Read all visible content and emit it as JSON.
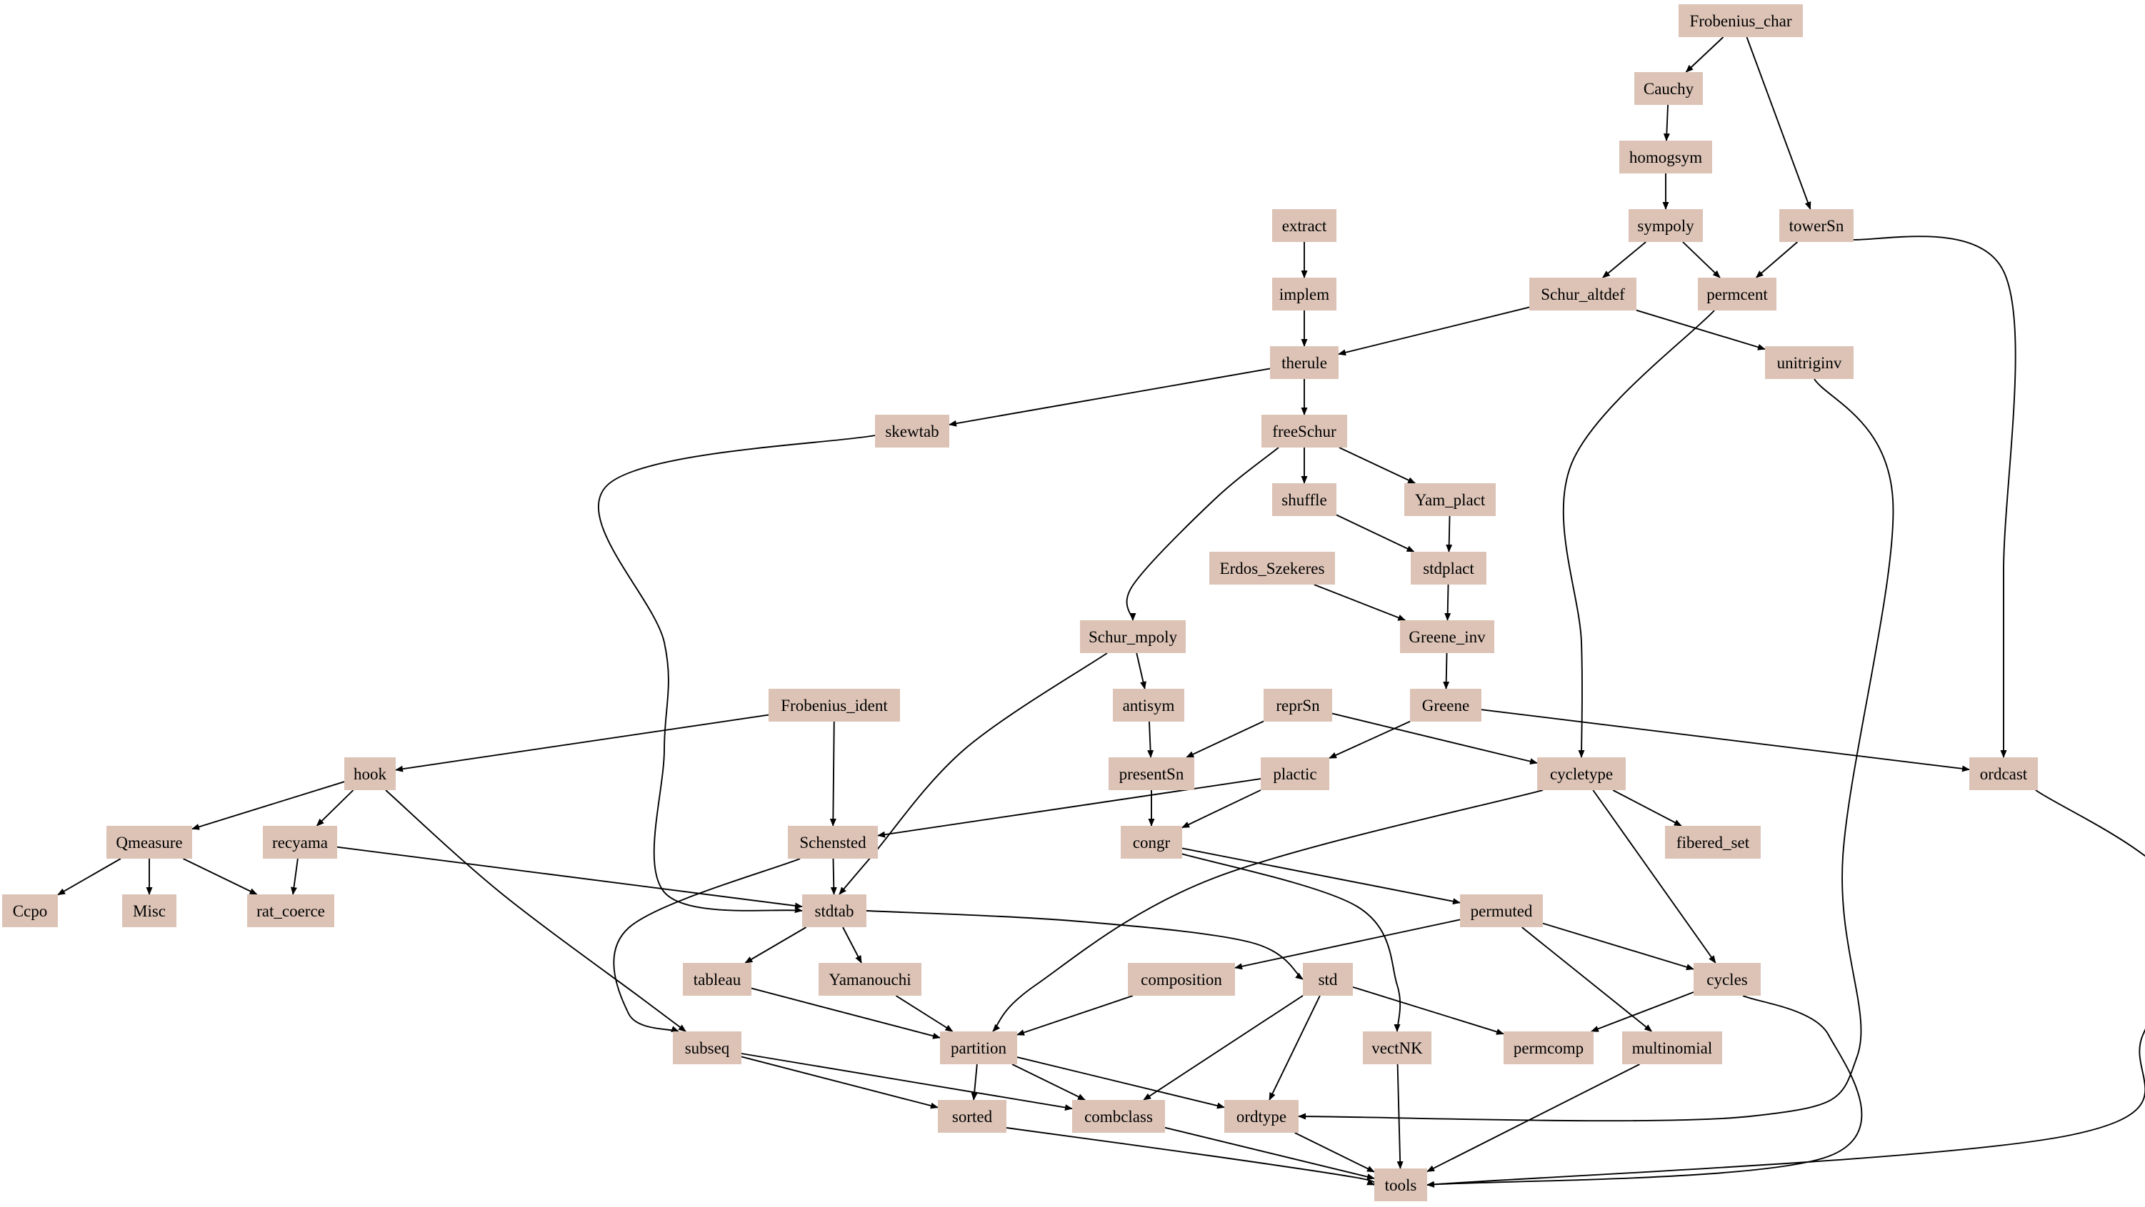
{
  "colors": {
    "node_fill": "#dcc3b6",
    "edge": "#000000",
    "text": "#000000",
    "background": "#ffffff"
  },
  "nodes": [
    {
      "id": "Frobenius_char",
      "label": "Frobenius_char"
    },
    {
      "id": "Cauchy",
      "label": "Cauchy"
    },
    {
      "id": "homogsym",
      "label": "homogsym"
    },
    {
      "id": "sympoly",
      "label": "sympoly"
    },
    {
      "id": "towerSn",
      "label": "towerSn"
    },
    {
      "id": "extract",
      "label": "extract"
    },
    {
      "id": "implem",
      "label": "implem"
    },
    {
      "id": "Schur_altdef",
      "label": "Schur_altdef"
    },
    {
      "id": "permcent",
      "label": "permcent"
    },
    {
      "id": "therule",
      "label": "therule"
    },
    {
      "id": "unitriginv",
      "label": "unitriginv"
    },
    {
      "id": "skewtab",
      "label": "skewtab"
    },
    {
      "id": "freeSchur",
      "label": "freeSchur"
    },
    {
      "id": "shuffle",
      "label": "shuffle"
    },
    {
      "id": "Yam_plact",
      "label": "Yam_plact"
    },
    {
      "id": "Erdos_Szekeres",
      "label": "Erdos_Szekeres"
    },
    {
      "id": "stdplact",
      "label": "stdplact"
    },
    {
      "id": "Schur_mpoly",
      "label": "Schur_mpoly"
    },
    {
      "id": "Greene_inv",
      "label": "Greene_inv"
    },
    {
      "id": "Frobenius_ident",
      "label": "Frobenius_ident"
    },
    {
      "id": "antisym",
      "label": "antisym"
    },
    {
      "id": "reprSn",
      "label": "reprSn"
    },
    {
      "id": "Greene",
      "label": "Greene"
    },
    {
      "id": "hook",
      "label": "hook"
    },
    {
      "id": "presentSn",
      "label": "presentSn"
    },
    {
      "id": "plactic",
      "label": "plactic"
    },
    {
      "id": "cycletype",
      "label": "cycletype"
    },
    {
      "id": "ordcast",
      "label": "ordcast"
    },
    {
      "id": "Qmeasure",
      "label": "Qmeasure"
    },
    {
      "id": "recyama",
      "label": "recyama"
    },
    {
      "id": "Schensted",
      "label": "Schensted"
    },
    {
      "id": "congr",
      "label": "congr"
    },
    {
      "id": "fibered_set",
      "label": "fibered_set"
    },
    {
      "id": "Ccpo",
      "label": "Ccpo"
    },
    {
      "id": "Misc",
      "label": "Misc"
    },
    {
      "id": "rat_coerce",
      "label": "rat_coerce"
    },
    {
      "id": "stdtab",
      "label": "stdtab"
    },
    {
      "id": "permuted",
      "label": "permuted"
    },
    {
      "id": "tableau",
      "label": "tableau"
    },
    {
      "id": "Yamanouchi",
      "label": "Yamanouchi"
    },
    {
      "id": "composition",
      "label": "composition"
    },
    {
      "id": "std",
      "label": "std"
    },
    {
      "id": "cycles",
      "label": "cycles"
    },
    {
      "id": "subseq",
      "label": "subseq"
    },
    {
      "id": "partition",
      "label": "partition"
    },
    {
      "id": "vectNK",
      "label": "vectNK"
    },
    {
      "id": "permcomp",
      "label": "permcomp"
    },
    {
      "id": "multinomial",
      "label": "multinomial"
    },
    {
      "id": "sorted",
      "label": "sorted"
    },
    {
      "id": "combclass",
      "label": "combclass"
    },
    {
      "id": "ordtype",
      "label": "ordtype"
    },
    {
      "id": "tools",
      "label": "tools"
    }
  ],
  "edges": [
    {
      "from": "Frobenius_char",
      "to": "Cauchy"
    },
    {
      "from": "Frobenius_char",
      "to": "towerSn"
    },
    {
      "from": "Cauchy",
      "to": "homogsym"
    },
    {
      "from": "homogsym",
      "to": "sympoly"
    },
    {
      "from": "sympoly",
      "to": "Schur_altdef"
    },
    {
      "from": "sympoly",
      "to": "permcent"
    },
    {
      "from": "towerSn",
      "to": "permcent"
    },
    {
      "from": "towerSn",
      "to": "ordcast"
    },
    {
      "from": "extract",
      "to": "implem"
    },
    {
      "from": "implem",
      "to": "therule"
    },
    {
      "from": "Schur_altdef",
      "to": "therule"
    },
    {
      "from": "Schur_altdef",
      "to": "unitriginv"
    },
    {
      "from": "permcent",
      "to": "cycletype"
    },
    {
      "from": "therule",
      "to": "skewtab"
    },
    {
      "from": "therule",
      "to": "freeSchur"
    },
    {
      "from": "unitriginv",
      "to": "ordtype"
    },
    {
      "from": "skewtab",
      "to": "stdtab"
    },
    {
      "from": "freeSchur",
      "to": "shuffle"
    },
    {
      "from": "freeSchur",
      "to": "Yam_plact"
    },
    {
      "from": "freeSchur",
      "to": "Schur_mpoly"
    },
    {
      "from": "shuffle",
      "to": "stdplact"
    },
    {
      "from": "Yam_plact",
      "to": "stdplact"
    },
    {
      "from": "Erdos_Szekeres",
      "to": "Greene_inv"
    },
    {
      "from": "stdplact",
      "to": "Greene_inv"
    },
    {
      "from": "Greene_inv",
      "to": "Greene"
    },
    {
      "from": "Schur_mpoly",
      "to": "antisym"
    },
    {
      "from": "Schur_mpoly",
      "to": "stdtab"
    },
    {
      "from": "Frobenius_ident",
      "to": "hook"
    },
    {
      "from": "Frobenius_ident",
      "to": "Schensted"
    },
    {
      "from": "antisym",
      "to": "presentSn"
    },
    {
      "from": "reprSn",
      "to": "presentSn"
    },
    {
      "from": "reprSn",
      "to": "cycletype"
    },
    {
      "from": "Greene",
      "to": "plactic"
    },
    {
      "from": "Greene",
      "to": "ordcast"
    },
    {
      "from": "hook",
      "to": "Qmeasure"
    },
    {
      "from": "hook",
      "to": "recyama"
    },
    {
      "from": "hook",
      "to": "subseq"
    },
    {
      "from": "presentSn",
      "to": "congr"
    },
    {
      "from": "plactic",
      "to": "Schensted"
    },
    {
      "from": "plactic",
      "to": "congr"
    },
    {
      "from": "cycletype",
      "to": "fibered_set"
    },
    {
      "from": "cycletype",
      "to": "partition"
    },
    {
      "from": "cycletype",
      "to": "cycles"
    },
    {
      "from": "ordcast",
      "to": "tools"
    },
    {
      "from": "Qmeasure",
      "to": "Ccpo"
    },
    {
      "from": "Qmeasure",
      "to": "Misc"
    },
    {
      "from": "Qmeasure",
      "to": "rat_coerce"
    },
    {
      "from": "recyama",
      "to": "rat_coerce"
    },
    {
      "from": "recyama",
      "to": "stdtab"
    },
    {
      "from": "Schensted",
      "to": "stdtab"
    },
    {
      "from": "Schensted",
      "to": "subseq"
    },
    {
      "from": "congr",
      "to": "permuted"
    },
    {
      "from": "congr",
      "to": "vectNK"
    },
    {
      "from": "stdtab",
      "to": "tableau"
    },
    {
      "from": "stdtab",
      "to": "Yamanouchi"
    },
    {
      "from": "stdtab",
      "to": "std"
    },
    {
      "from": "permuted",
      "to": "composition"
    },
    {
      "from": "permuted",
      "to": "cycles"
    },
    {
      "from": "permuted",
      "to": "multinomial"
    },
    {
      "from": "tableau",
      "to": "partition"
    },
    {
      "from": "Yamanouchi",
      "to": "partition"
    },
    {
      "from": "composition",
      "to": "partition"
    },
    {
      "from": "std",
      "to": "combclass"
    },
    {
      "from": "std",
      "to": "ordtype"
    },
    {
      "from": "std",
      "to": "permcomp"
    },
    {
      "from": "cycles",
      "to": "permcomp"
    },
    {
      "from": "cycles",
      "to": "tools"
    },
    {
      "from": "subseq",
      "to": "sorted"
    },
    {
      "from": "subseq",
      "to": "combclass"
    },
    {
      "from": "partition",
      "to": "sorted"
    },
    {
      "from": "partition",
      "to": "combclass"
    },
    {
      "from": "partition",
      "to": "ordtype"
    },
    {
      "from": "vectNK",
      "to": "tools"
    },
    {
      "from": "multinomial",
      "to": "tools"
    },
    {
      "from": "sorted",
      "to": "tools"
    },
    {
      "from": "combclass",
      "to": "tools"
    },
    {
      "from": "ordtype",
      "to": "tools"
    }
  ]
}
